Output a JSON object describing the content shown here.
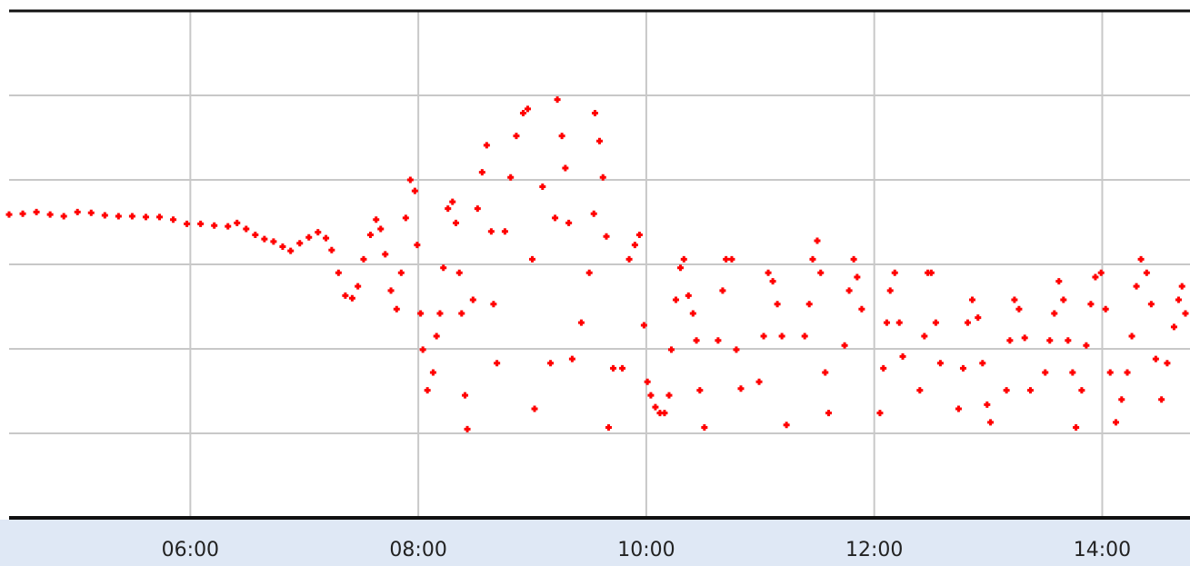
{
  "chart_data": {
    "type": "scatter",
    "x": [
      4.41,
      4.53,
      4.65,
      4.77,
      4.89,
      5.01,
      5.13,
      5.25,
      5.37,
      5.49,
      5.61,
      5.73,
      5.85,
      5.97,
      6.09,
      6.21,
      6.33,
      6.41,
      6.49,
      6.57,
      6.65,
      6.73,
      6.81,
      6.88,
      6.96,
      7.04,
      7.12,
      7.19,
      7.24,
      7.3,
      7.36,
      7.42,
      7.47,
      7.52,
      7.58,
      7.63,
      7.67,
      7.71,
      7.76,
      7.81,
      7.85,
      7.89,
      7.93,
      7.97,
      7.99,
      8.02,
      8.04,
      8.08,
      8.13,
      8.16,
      8.19,
      8.22,
      8.26,
      8.3,
      8.33,
      8.36,
      8.38,
      8.41,
      8.43,
      8.48,
      8.52,
      8.56,
      8.6,
      8.64,
      8.66,
      8.69,
      8.76,
      8.81,
      8.86,
      8.92,
      8.96,
      9.0,
      9.02,
      9.09,
      9.16,
      9.2,
      9.22,
      9.26,
      9.29,
      9.32,
      9.35,
      9.43,
      9.5,
      9.54,
      9.55,
      9.59,
      9.62,
      9.65,
      9.67,
      9.71,
      9.79,
      9.85,
      9.9,
      9.94,
      9.98,
      10.01,
      10.04,
      10.08,
      10.12,
      10.16,
      10.2,
      10.22,
      10.26,
      10.3,
      10.33,
      10.37,
      10.41,
      10.44,
      10.47,
      10.51,
      10.63,
      10.67,
      10.7,
      10.75,
      10.79,
      10.83,
      10.99,
      11.03,
      11.07,
      11.11,
      11.15,
      11.19,
      11.23,
      11.39,
      11.43,
      11.46,
      11.5,
      11.53,
      11.57,
      11.6,
      11.74,
      11.78,
      11.82,
      11.85,
      11.89,
      12.05,
      12.08,
      12.11,
      12.14,
      12.18,
      12.22,
      12.25,
      12.4,
      12.44,
      12.47,
      12.5,
      12.54,
      12.58,
      12.74,
      12.78,
      12.82,
      12.86,
      12.91,
      12.95,
      12.99,
      13.02,
      13.16,
      13.19,
      13.23,
      13.27,
      13.32,
      13.37,
      13.5,
      13.54,
      13.58,
      13.62,
      13.66,
      13.7,
      13.74,
      13.77,
      13.82,
      13.86,
      13.9,
      13.94,
      13.99,
      14.03,
      14.07,
      14.12,
      14.17,
      14.22,
      14.26,
      14.3,
      14.34,
      14.39,
      14.43,
      14.47,
      14.52,
      14.57,
      14.63,
      14.67,
      14.7,
      14.73
    ],
    "values": [
      3.59,
      3.6,
      3.62,
      3.59,
      3.57,
      3.62,
      3.61,
      3.58,
      3.57,
      3.57,
      3.56,
      3.56,
      3.53,
      3.48,
      3.48,
      3.46,
      3.45,
      3.49,
      3.42,
      3.35,
      3.3,
      3.27,
      3.21,
      3.16,
      3.25,
      3.32,
      3.38,
      3.31,
      3.17,
      2.9,
      2.63,
      2.6,
      2.74,
      3.06,
      3.35,
      3.53,
      3.42,
      3.12,
      2.69,
      2.47,
      2.9,
      3.55,
      4.0,
      3.87,
      3.23,
      2.42,
      1.99,
      1.51,
      1.72,
      2.15,
      2.42,
      2.96,
      3.66,
      3.74,
      3.49,
      2.9,
      2.42,
      1.45,
      1.05,
      2.58,
      3.66,
      4.09,
      4.41,
      3.39,
      2.53,
      1.83,
      3.39,
      4.03,
      4.52,
      4.79,
      4.84,
      3.06,
      1.29,
      3.92,
      1.83,
      3.55,
      4.95,
      4.52,
      4.14,
      3.49,
      1.88,
      2.31,
      2.9,
      3.6,
      4.79,
      4.46,
      4.03,
      3.33,
      1.07,
      1.77,
      1.77,
      3.06,
      3.23,
      3.35,
      2.28,
      1.61,
      1.45,
      1.31,
      1.24,
      1.24,
      1.45,
      1.99,
      2.58,
      2.96,
      3.06,
      2.63,
      2.42,
      2.1,
      1.51,
      1.07,
      2.1,
      2.69,
      3.06,
      3.06,
      1.99,
      1.53,
      1.61,
      2.15,
      2.9,
      2.8,
      2.53,
      2.15,
      1.1,
      2.15,
      2.53,
      3.06,
      3.28,
      2.9,
      1.72,
      1.24,
      2.04,
      2.69,
      3.06,
      2.85,
      2.47,
      1.24,
      1.77,
      2.31,
      2.69,
      2.9,
      2.31,
      1.91,
      1.51,
      2.15,
      2.9,
      2.9,
      2.31,
      1.83,
      1.29,
      1.77,
      2.31,
      2.58,
      2.37,
      1.83,
      1.34,
      1.13,
      1.51,
      2.1,
      2.58,
      2.47,
      2.13,
      1.51,
      1.72,
      2.1,
      2.42,
      2.8,
      2.58,
      2.1,
      1.72,
      1.07,
      1.51,
      2.04,
      2.53,
      2.85,
      2.9,
      2.47,
      1.72,
      1.13,
      1.4,
      1.72,
      2.15,
      2.74,
      3.06,
      2.9,
      2.53,
      1.88,
      1.4,
      1.83,
      2.26,
      2.58,
      2.74,
      2.42
    ],
    "color": "#ff0000",
    "xlim": [
      4.41,
      14.77
    ],
    "xticks": [
      {
        "value": 6,
        "label": "06:00"
      },
      {
        "value": 8,
        "label": "08:00"
      },
      {
        "value": 10,
        "label": "10:00"
      },
      {
        "value": 12,
        "label": "12:00"
      },
      {
        "value": 14,
        "label": "14:00"
      }
    ],
    "ylim": [
      0,
      6
    ],
    "yticks": [
      1,
      2,
      3,
      4,
      5
    ],
    "grid": true
  }
}
